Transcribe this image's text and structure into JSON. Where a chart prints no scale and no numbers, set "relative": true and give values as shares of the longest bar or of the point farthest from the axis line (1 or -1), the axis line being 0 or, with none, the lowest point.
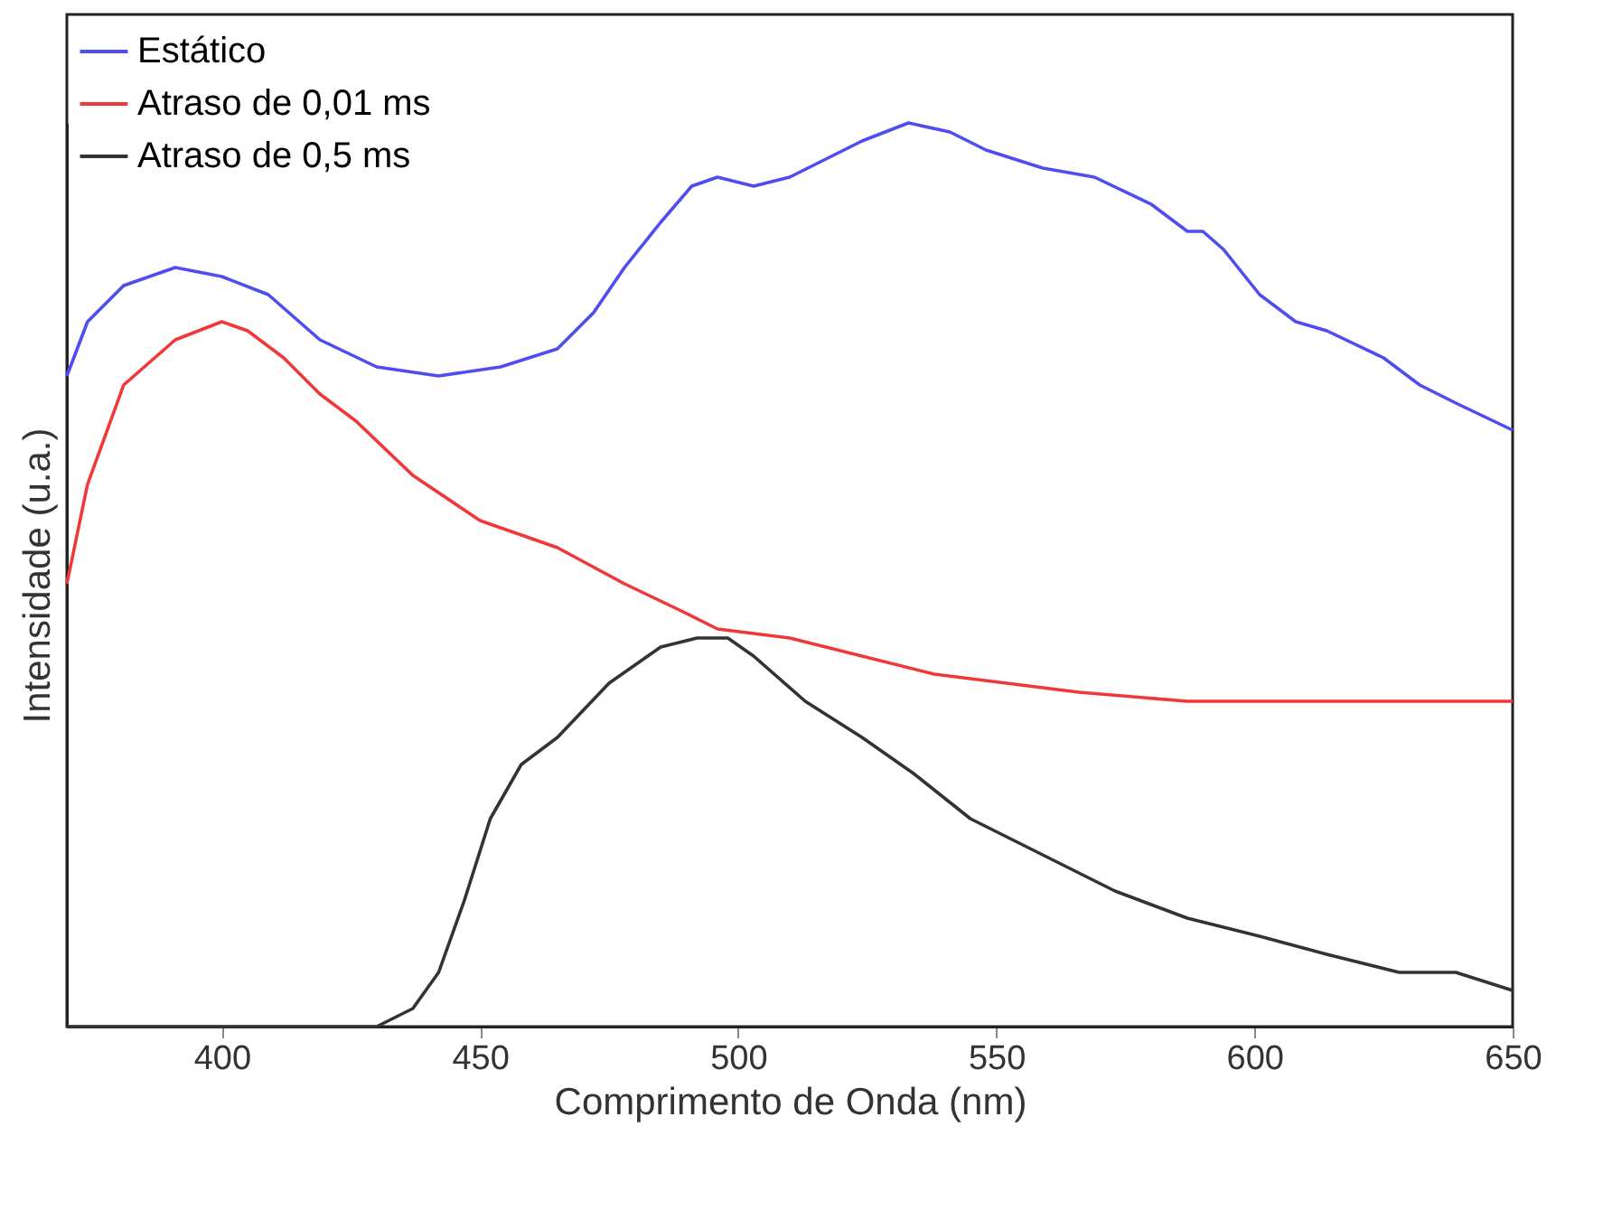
{
  "chart_data": {
    "type": "line",
    "xlabel": "Comprimento de Onda (nm)",
    "ylabel": "Intensidade (u.a.)",
    "relative": true,
    "xlim": [
      370,
      650
    ],
    "xticks": [
      400,
      450,
      500,
      550,
      600,
      650
    ],
    "legend": "top left",
    "grid": false,
    "line_style": "solid",
    "series": [
      {
        "name": "Estático",
        "color": "#4f4cf0",
        "x": [
          370,
          374,
          381,
          391,
          400,
          409,
          419,
          430,
          442,
          454,
          465,
          472,
          478,
          485,
          491,
          496,
          503,
          510,
          517,
          524,
          533,
          541,
          548,
          559,
          569,
          580,
          587,
          590,
          594,
          601,
          608,
          614,
          625,
          632,
          639,
          650
        ],
        "values": [
          0.72,
          0.78,
          0.82,
          0.84,
          0.83,
          0.81,
          0.76,
          0.73,
          0.72,
          0.73,
          0.75,
          0.79,
          0.84,
          0.89,
          0.93,
          0.94,
          0.93,
          0.94,
          0.96,
          0.98,
          1,
          0.99,
          0.97,
          0.95,
          0.94,
          0.91,
          0.88,
          0.88,
          0.86,
          0.81,
          0.78,
          0.77,
          0.74,
          0.71,
          0.69,
          0.66
        ]
      },
      {
        "name": "Atraso de 0,01 ms",
        "color": "#f0383a",
        "x": [
          370,
          374,
          381,
          391,
          400,
          405,
          412,
          419,
          426,
          437,
          450,
          465,
          478,
          489,
          496,
          510,
          524,
          538,
          552,
          566,
          587,
          608,
          628,
          650
        ],
        "values": [
          0.49,
          0.6,
          0.71,
          0.76,
          0.78,
          0.77,
          0.74,
          0.7,
          0.67,
          0.61,
          0.56,
          0.53,
          0.49,
          0.46,
          0.44,
          0.43,
          0.41,
          0.39,
          0.38,
          0.37,
          0.36,
          0.36,
          0.36,
          0.36
        ]
      },
      {
        "name": "Atraso de 0,5 ms",
        "color": "#333333",
        "x": [
          370,
          430,
          437,
          442,
          447,
          452,
          458,
          465,
          475,
          485,
          492,
          498,
          503,
          513,
          524,
          534,
          545,
          559,
          573,
          587,
          601,
          614,
          628,
          639,
          650
        ],
        "values": [
          0,
          0,
          0.02,
          0.06,
          0.14,
          0.23,
          0.29,
          0.32,
          0.38,
          0.42,
          0.43,
          0.43,
          0.41,
          0.36,
          0.32,
          0.28,
          0.23,
          0.19,
          0.15,
          0.12,
          0.1,
          0.08,
          0.06,
          0.06,
          0.04
        ]
      }
    ]
  }
}
